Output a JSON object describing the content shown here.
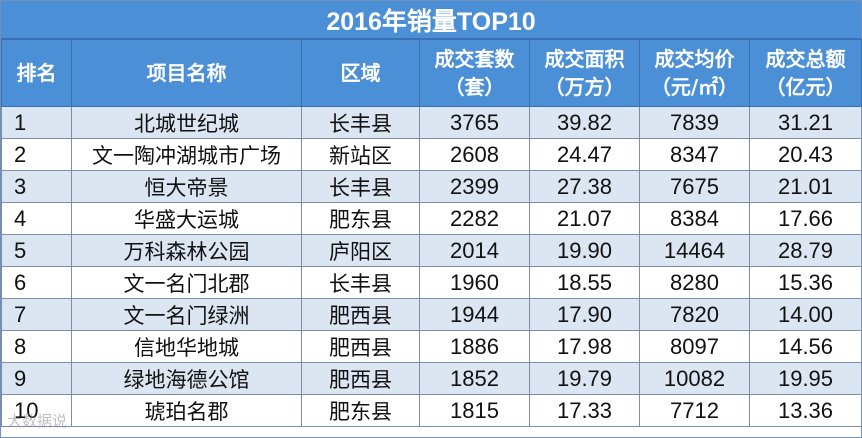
{
  "title": "2016年销量TOP10",
  "headers": [
    {
      "line1": "排名",
      "line2": ""
    },
    {
      "line1": "项目名称",
      "line2": ""
    },
    {
      "line1": "区域",
      "line2": ""
    },
    {
      "line1": "成交套数",
      "line2": "（套）"
    },
    {
      "line1": "成交面积",
      "line2": "（万方）"
    },
    {
      "line1": "成交均价",
      "line2": "（元/㎡）"
    },
    {
      "line1": "成交总额",
      "line2": "（亿元）"
    }
  ],
  "rows": [
    {
      "rank": "1",
      "name": "北城世纪城",
      "area": "长丰县",
      "units": "3765",
      "space": "39.82",
      "price": "7839",
      "total": "31.21"
    },
    {
      "rank": "2",
      "name": "文一陶冲湖城市广场",
      "area": "新站区",
      "units": "2608",
      "space": "24.47",
      "price": "8347",
      "total": "20.43"
    },
    {
      "rank": "3",
      "name": "恒大帝景",
      "area": "长丰县",
      "units": "2399",
      "space": "27.38",
      "price": "7675",
      "total": "21.01"
    },
    {
      "rank": "4",
      "name": "华盛大运城",
      "area": "肥东县",
      "units": "2282",
      "space": "21.07",
      "price": "8384",
      "total": "17.66"
    },
    {
      "rank": "5",
      "name": "万科森林公园",
      "area": "庐阳区",
      "units": "2014",
      "space": "19.90",
      "price": "14464",
      "total": "28.79"
    },
    {
      "rank": "6",
      "name": "文一名门北郡",
      "area": "长丰县",
      "units": "1960",
      "space": "18.55",
      "price": "8280",
      "total": "15.36"
    },
    {
      "rank": "7",
      "name": "文一名门绿洲",
      "area": "肥西县",
      "units": "1944",
      "space": "17.90",
      "price": "7820",
      "total": "14.00"
    },
    {
      "rank": "8",
      "name": "信地华地城",
      "area": "肥西县",
      "units": "1886",
      "space": "17.98",
      "price": "8097",
      "total": "14.56"
    },
    {
      "rank": "9",
      "name": "绿地海德公馆",
      "area": "肥西县",
      "units": "1852",
      "space": "19.79",
      "price": "10082",
      "total": "19.95"
    },
    {
      "rank": "10",
      "name": "琥珀名郡",
      "area": "肥东县",
      "units": "1815",
      "space": "17.33",
      "price": "7712",
      "total": "13.36"
    }
  ],
  "watermark": "大数据说"
}
